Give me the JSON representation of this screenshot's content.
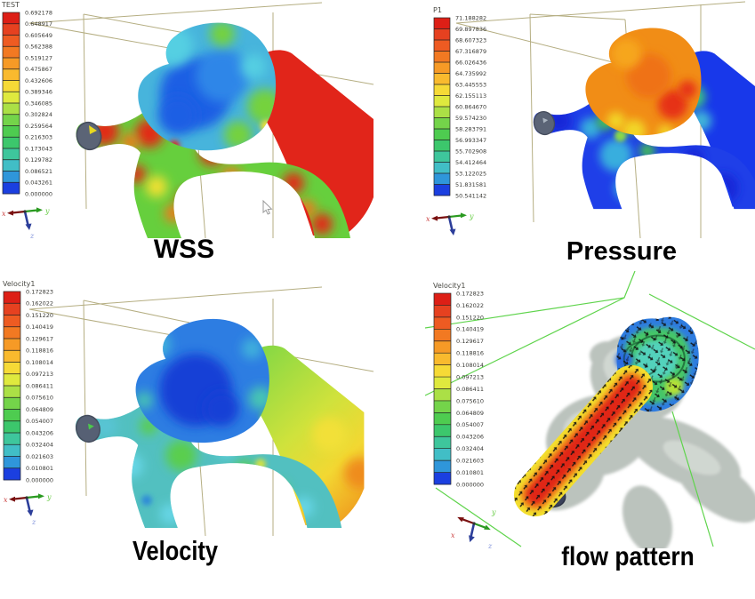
{
  "figure": {
    "type": "cfd-results-montage",
    "panel_count": 4
  },
  "colors": {
    "background": "#ffffff",
    "wireframe_box": "#b5ae82",
    "wireframe_green": "#5fd44c",
    "caption_text": "#000000",
    "vessel_grey": "#b6beb8",
    "inlet_cap": "#5b6476",
    "colorbar": [
      "#dd1f16",
      "#e64120",
      "#ee5b22",
      "#f27922",
      "#f69a26",
      "#f9ba2e",
      "#f6da36",
      "#dfe93e",
      "#abe046",
      "#74d44a",
      "#4ecc50",
      "#3cc76c",
      "#3ec69c",
      "#41bec6",
      "#2f96da",
      "#1b3fe0"
    ]
  },
  "axis_triad": {
    "x": "x",
    "y": "y",
    "z": "z"
  },
  "panels": [
    {
      "id": "wss",
      "caption": "WSS",
      "legend": {
        "title": "TEST",
        "values": [
          "0.692178",
          "0.648917",
          "0.605649",
          "0.562388",
          "0.519127",
          "0.475867",
          "0.432606",
          "0.389346",
          "0.346085",
          "0.302824",
          "0.259564",
          "0.216303",
          "0.173043",
          "0.129782",
          "0.086521",
          "0.043261",
          "0.000000"
        ]
      }
    },
    {
      "id": "pressure",
      "caption": "Pressure",
      "legend": {
        "title": "P1",
        "values": [
          "71.188282",
          "69.897836",
          "68.607323",
          "67.316879",
          "66.026436",
          "64.735992",
          "63.445553",
          "62.155113",
          "60.864670",
          "59.574230",
          "58.283791",
          "56.993347",
          "55.702908",
          "54.412464",
          "53.122025",
          "51.831581",
          "50.541142"
        ]
      }
    },
    {
      "id": "velocity",
      "caption": "Velocity",
      "legend": {
        "title": "Velocity1",
        "values": [
          "0.172823",
          "0.162022",
          "0.151220",
          "0.140419",
          "0.129617",
          "0.118816",
          "0.108014",
          "0.097213",
          "0.086411",
          "0.075610",
          "0.064809",
          "0.054007",
          "0.043206",
          "0.032404",
          "0.021603",
          "0.010801",
          "0.000000"
        ]
      }
    },
    {
      "id": "flow-pattern",
      "caption": "flow pattern",
      "legend": {
        "title": "Velocity1",
        "values": [
          "0.172823",
          "0.162022",
          "0.151220",
          "0.140419",
          "0.129617",
          "0.118816",
          "0.108014",
          "0.097213",
          "0.086411",
          "0.075610",
          "0.064809",
          "0.054007",
          "0.043206",
          "0.032404",
          "0.021603",
          "0.010801",
          "0.000000"
        ]
      }
    }
  ]
}
